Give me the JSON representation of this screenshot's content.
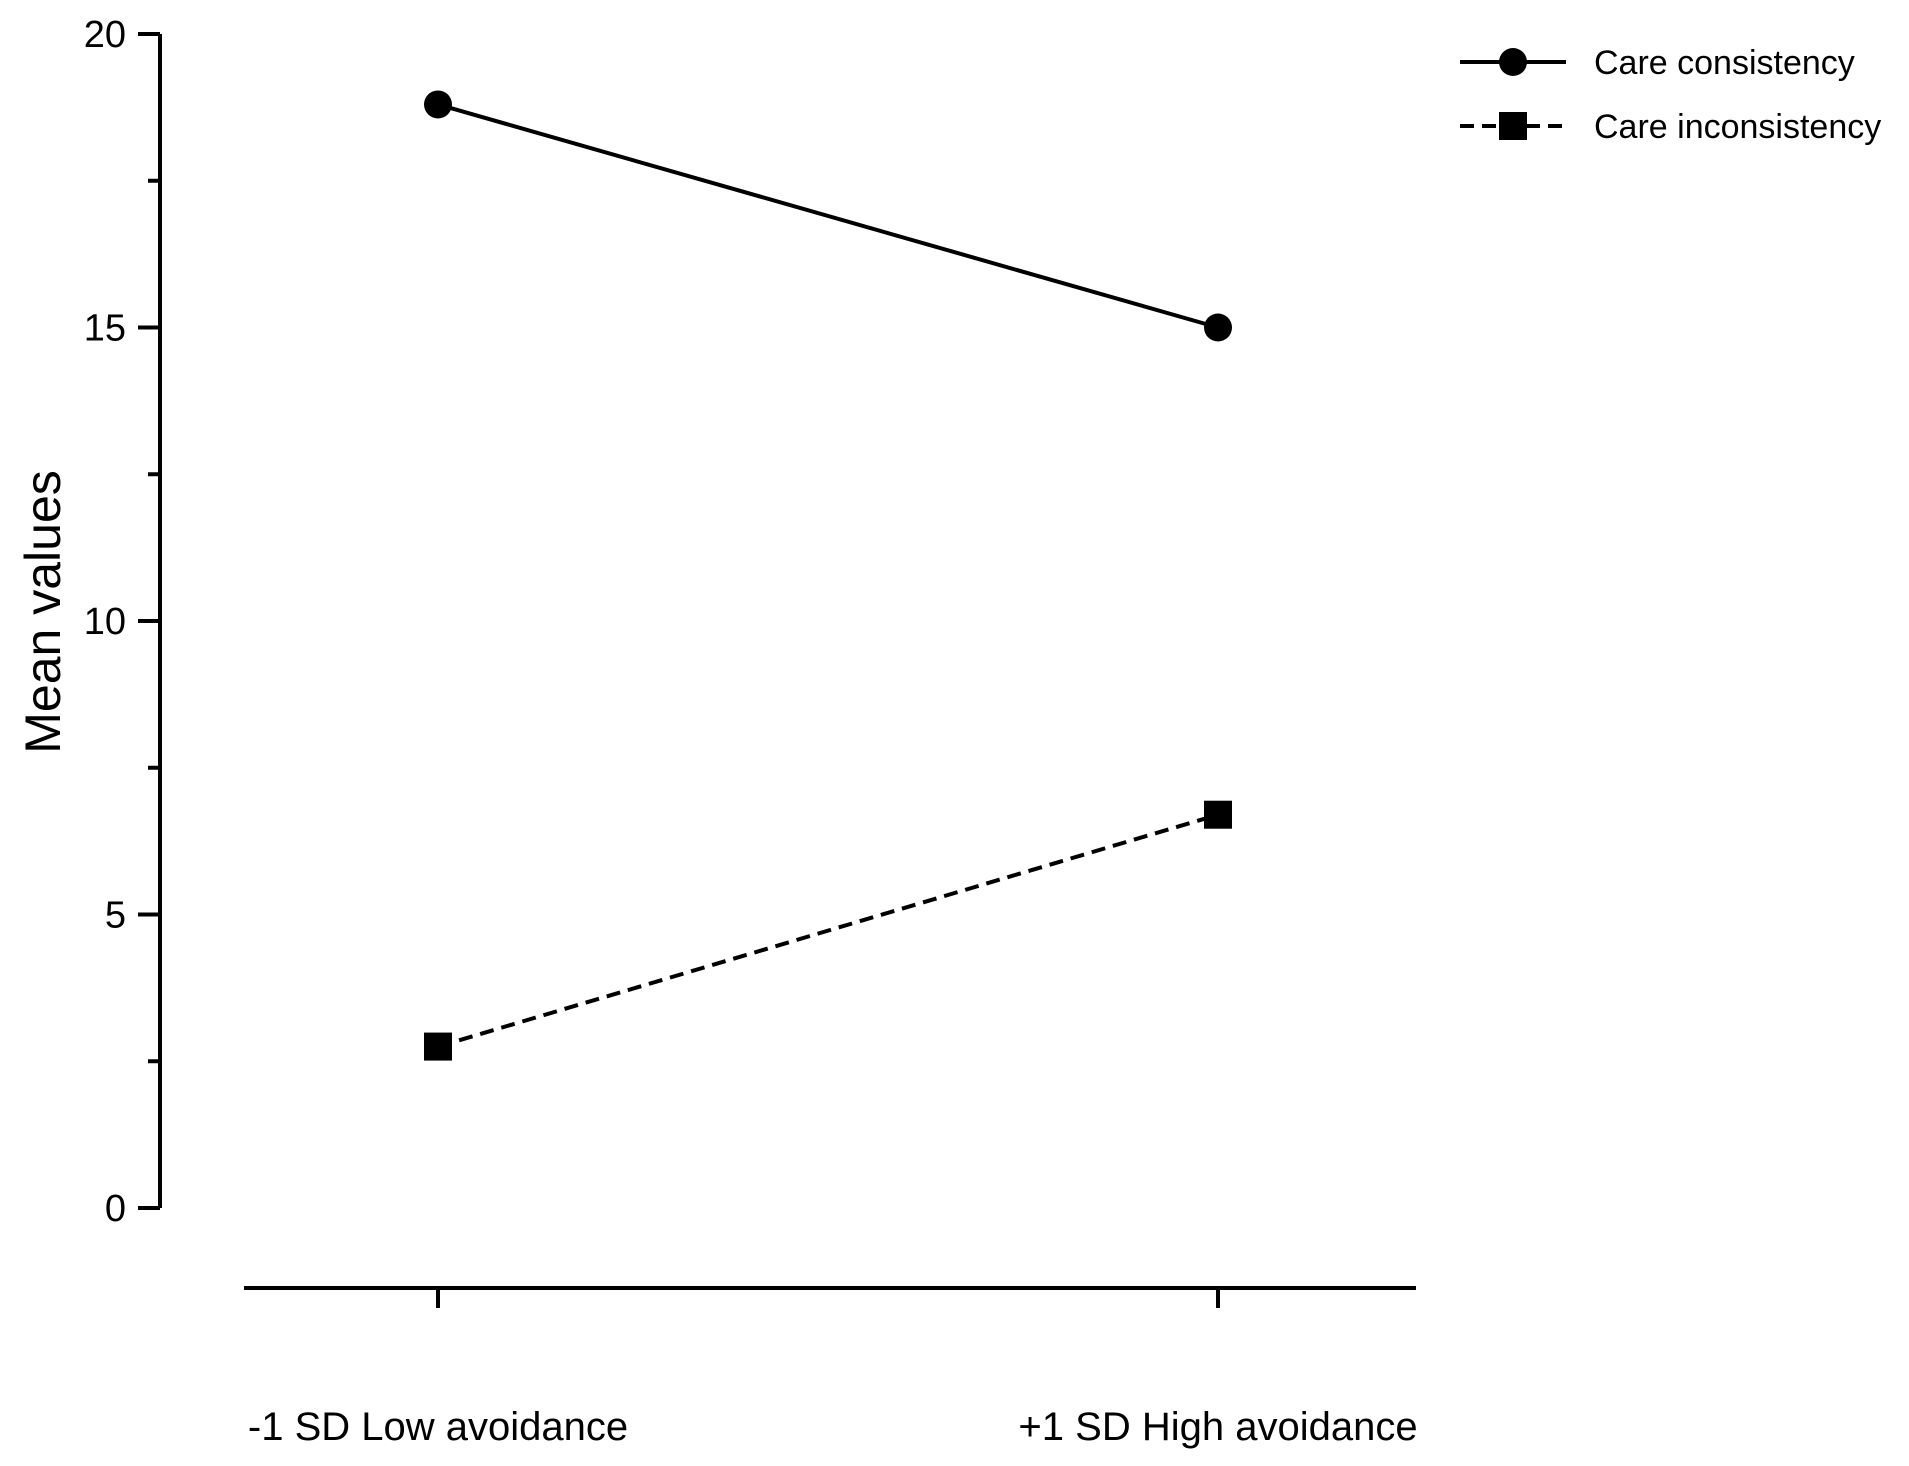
{
  "chart_data": {
    "type": "line",
    "title": "",
    "xlabel": "",
    "ylabel": "Mean values",
    "categories": [
      "-1 SD Low avoidance",
      "+1 SD High avoidance"
    ],
    "ylim": [
      0,
      20
    ],
    "yticks": [
      0,
      5,
      10,
      15,
      20
    ],
    "ytick_labels": [
      "0",
      "5",
      "10",
      "15",
      "20"
    ],
    "grid": false,
    "legend_position": "top-right",
    "series": [
      {
        "name": "Care consistency",
        "values": [
          18.8,
          15.0
        ],
        "line": "solid",
        "marker": "circle",
        "color": "#000000"
      },
      {
        "name": "Care inconsistency",
        "values": [
          2.75,
          6.7
        ],
        "line": "dashed",
        "marker": "square",
        "color": "#000000"
      }
    ]
  }
}
